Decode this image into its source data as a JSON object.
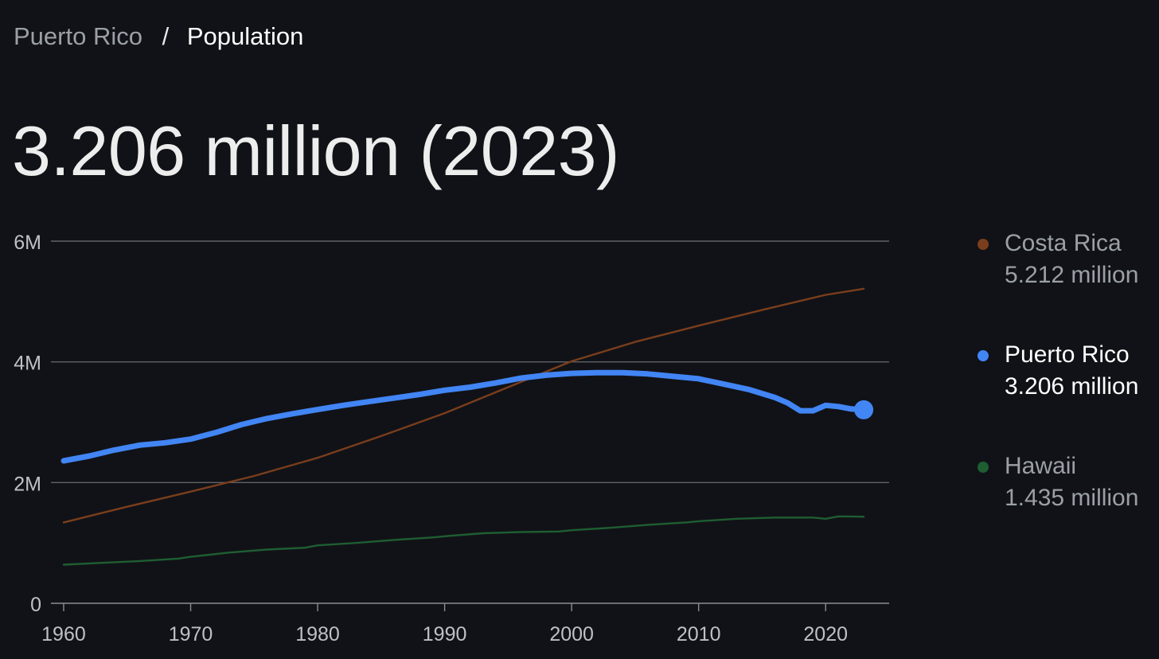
{
  "breadcrumb": {
    "parent": "Puerto Rico",
    "separator": "/",
    "current": "Population"
  },
  "headline": "3.206 million (2023)",
  "legend": [
    {
      "name": "Costa Rica",
      "value": "5.212 million",
      "color": "#7a3e1c",
      "active": false
    },
    {
      "name": "Puerto Rico",
      "value": "3.206 million",
      "color": "#4285f4",
      "active": true
    },
    {
      "name": "Hawaii",
      "value": "1.435 million",
      "color": "#1e5e32",
      "active": false
    }
  ],
  "chart_data": {
    "type": "line",
    "title": "",
    "xlabel": "",
    "ylabel": "",
    "xlim": [
      1959,
      2025
    ],
    "ylim": [
      0,
      6000000
    ],
    "grid": true,
    "legend_position": "right",
    "x_ticks": [
      1960,
      1970,
      1980,
      1990,
      2000,
      2010,
      2020
    ],
    "x_tick_labels": [
      "1960",
      "1970",
      "1980",
      "1990",
      "2000",
      "2010",
      "2020"
    ],
    "y_ticks": [
      0,
      2000000,
      4000000,
      6000000
    ],
    "y_tick_labels": [
      "0",
      "2M",
      "4M",
      "6M"
    ],
    "series": [
      {
        "name": "Costa Rica",
        "color": "#7a3e1c",
        "emphasis": false,
        "points": [
          [
            1960,
            1340000
          ],
          [
            1965,
            1600000
          ],
          [
            1970,
            1850000
          ],
          [
            1975,
            2110000
          ],
          [
            1980,
            2410000
          ],
          [
            1985,
            2770000
          ],
          [
            1990,
            3150000
          ],
          [
            1995,
            3580000
          ],
          [
            2000,
            4010000
          ],
          [
            2005,
            4330000
          ],
          [
            2010,
            4600000
          ],
          [
            2015,
            4860000
          ],
          [
            2020,
            5110000
          ],
          [
            2023,
            5212000
          ]
        ]
      },
      {
        "name": "Puerto Rico",
        "color": "#4285f4",
        "emphasis": true,
        "points": [
          [
            1960,
            2360000
          ],
          [
            1962,
            2440000
          ],
          [
            1964,
            2540000
          ],
          [
            1966,
            2620000
          ],
          [
            1968,
            2660000
          ],
          [
            1970,
            2720000
          ],
          [
            1972,
            2830000
          ],
          [
            1974,
            2960000
          ],
          [
            1976,
            3060000
          ],
          [
            1978,
            3140000
          ],
          [
            1980,
            3210000
          ],
          [
            1982,
            3280000
          ],
          [
            1984,
            3340000
          ],
          [
            1986,
            3400000
          ],
          [
            1988,
            3460000
          ],
          [
            1990,
            3530000
          ],
          [
            1992,
            3580000
          ],
          [
            1994,
            3650000
          ],
          [
            1996,
            3730000
          ],
          [
            1998,
            3780000
          ],
          [
            2000,
            3810000
          ],
          [
            2002,
            3820000
          ],
          [
            2004,
            3820000
          ],
          [
            2006,
            3800000
          ],
          [
            2008,
            3760000
          ],
          [
            2010,
            3720000
          ],
          [
            2012,
            3630000
          ],
          [
            2014,
            3540000
          ],
          [
            2016,
            3410000
          ],
          [
            2017,
            3320000
          ],
          [
            2018,
            3190000
          ],
          [
            2019,
            3190000
          ],
          [
            2020,
            3280000
          ],
          [
            2021,
            3260000
          ],
          [
            2022,
            3220000
          ],
          [
            2023,
            3206000
          ]
        ]
      },
      {
        "name": "Hawaii",
        "color": "#1e5e32",
        "emphasis": false,
        "points": [
          [
            1960,
            640000
          ],
          [
            1963,
            670000
          ],
          [
            1966,
            700000
          ],
          [
            1969,
            740000
          ],
          [
            1970,
            770000
          ],
          [
            1973,
            840000
          ],
          [
            1976,
            890000
          ],
          [
            1979,
            920000
          ],
          [
            1980,
            960000
          ],
          [
            1983,
            1000000
          ],
          [
            1986,
            1050000
          ],
          [
            1989,
            1090000
          ],
          [
            1990,
            1110000
          ],
          [
            1993,
            1160000
          ],
          [
            1996,
            1180000
          ],
          [
            1999,
            1190000
          ],
          [
            2000,
            1210000
          ],
          [
            2003,
            1250000
          ],
          [
            2006,
            1300000
          ],
          [
            2009,
            1340000
          ],
          [
            2010,
            1360000
          ],
          [
            2013,
            1400000
          ],
          [
            2016,
            1420000
          ],
          [
            2019,
            1420000
          ],
          [
            2020,
            1400000
          ],
          [
            2021,
            1440000
          ],
          [
            2023,
            1435000
          ]
        ]
      }
    ]
  }
}
